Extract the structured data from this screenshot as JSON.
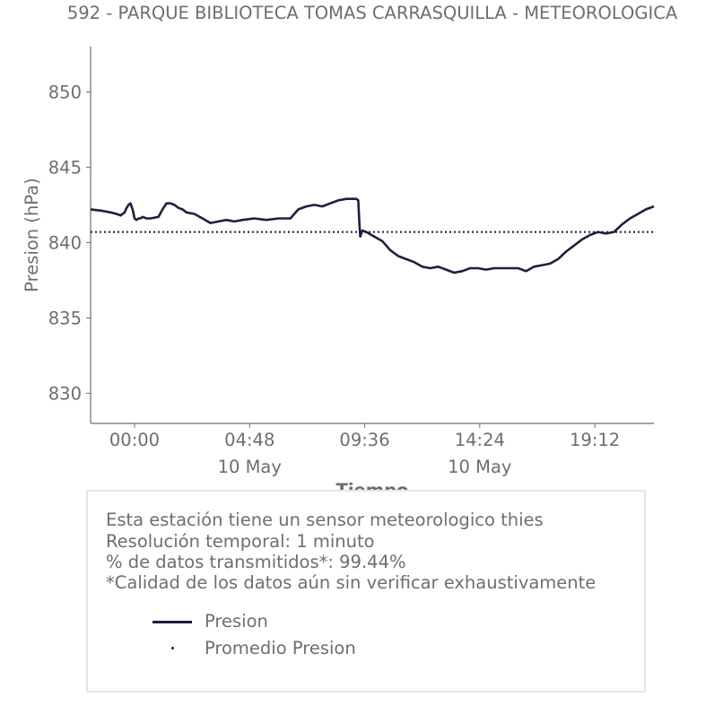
{
  "chart_data": {
    "type": "line",
    "title": "592 - PARQUE BIBLIOTECA TOMAS CARRASQUILLA - METEOROLOGICA",
    "xlabel": "Tiempo",
    "ylabel": "Presion (hPa)",
    "ylim": [
      828,
      853
    ],
    "xlim": [
      -110,
      1300
    ],
    "x_unit": "minutes from 00:00 10 May",
    "yticks": [
      830,
      835,
      840,
      845,
      850
    ],
    "xticks": [
      {
        "x": 0,
        "label": "00:00",
        "sublabel": ""
      },
      {
        "x": 288,
        "label": "04:48",
        "sublabel": "10 May"
      },
      {
        "x": 576,
        "label": "09:36",
        "sublabel": ""
      },
      {
        "x": 864,
        "label": "14:24",
        "sublabel": "10 May"
      },
      {
        "x": 1152,
        "label": "19:12",
        "sublabel": ""
      }
    ],
    "series": [
      {
        "name": "Presion",
        "color": "#1f1f3f",
        "style": "solid",
        "x": [
          -110,
          -80,
          -60,
          -45,
          -35,
          -25,
          -20,
          -15,
          -10,
          -5,
          0,
          5,
          10,
          15,
          20,
          30,
          40,
          60,
          70,
          80,
          90,
          100,
          110,
          120,
          130,
          150,
          170,
          190,
          210,
          230,
          250,
          270,
          300,
          330,
          360,
          390,
          410,
          430,
          450,
          470,
          490,
          510,
          530,
          545,
          555,
          560,
          563,
          565,
          570,
          580,
          600,
          620,
          640,
          660,
          680,
          700,
          720,
          740,
          760,
          780,
          800,
          820,
          840,
          860,
          880,
          900,
          920,
          940,
          960,
          980,
          1000,
          1020,
          1040,
          1060,
          1080,
          1100,
          1120,
          1140,
          1160,
          1180,
          1200,
          1220,
          1240,
          1260,
          1280,
          1300
        ],
        "y": [
          842.2,
          842.1,
          842.0,
          841.9,
          841.8,
          842.0,
          842.3,
          842.5,
          842.6,
          842.2,
          841.6,
          841.5,
          841.6,
          841.6,
          841.7,
          841.6,
          841.6,
          841.7,
          842.2,
          842.6,
          842.6,
          842.5,
          842.3,
          842.2,
          842.0,
          841.9,
          841.6,
          841.3,
          841.4,
          841.5,
          841.4,
          841.5,
          841.6,
          841.5,
          841.6,
          841.6,
          842.2,
          842.4,
          842.5,
          842.4,
          842.6,
          842.8,
          842.9,
          842.9,
          842.9,
          842.8,
          841.2,
          840.4,
          840.8,
          840.7,
          840.4,
          840.1,
          839.5,
          839.1,
          838.9,
          838.7,
          838.4,
          838.3,
          838.4,
          838.2,
          838.0,
          838.1,
          838.3,
          838.3,
          838.2,
          838.3,
          838.3,
          838.3,
          838.3,
          838.1,
          838.4,
          838.5,
          838.6,
          838.9,
          839.4,
          839.8,
          840.2,
          840.5,
          840.7,
          840.6,
          840.7,
          841.2,
          841.6,
          841.9,
          842.2,
          842.4
        ]
      },
      {
        "name": "Promedio Presion",
        "color": "#1f1f3f",
        "style": "dotted",
        "x": [
          -110,
          1300
        ],
        "y": [
          840.7,
          840.7
        ]
      }
    ],
    "grid": false,
    "legend_placement": "bottom"
  },
  "info": {
    "lines": [
      "Esta estación tiene un sensor meteorologico thies",
      "Resolución temporal: 1 minuto",
      "% de datos transmitidos*: 99.44%",
      "*Calidad de los datos aún sin verificar exhaustivamente"
    ],
    "legend": [
      {
        "label": "Presion",
        "marker": "line"
      },
      {
        "label": "Promedio Presion",
        "marker": "dot"
      }
    ]
  }
}
